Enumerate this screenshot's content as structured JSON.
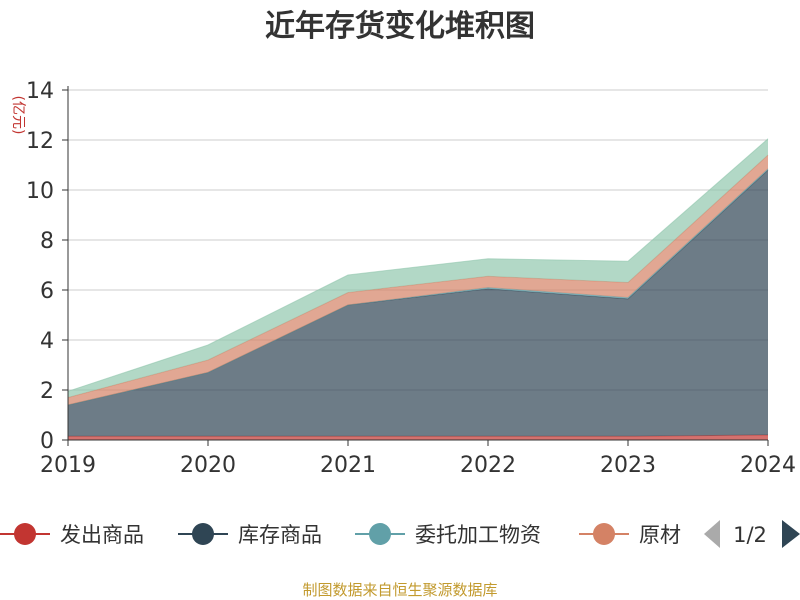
{
  "chart_data": {
    "type": "area",
    "stacked": true,
    "title": "近年存货变化堆积图",
    "unit_label": "(亿元)",
    "categories": [
      "2019",
      "2020",
      "2021",
      "2022",
      "2023",
      "2024"
    ],
    "ylim": [
      0,
      14
    ],
    "yticks": [
      0,
      2,
      4,
      6,
      8,
      10,
      12,
      14
    ],
    "grid": true,
    "series": [
      {
        "name": "发出商品",
        "color": "#c23531",
        "values": [
          0.15,
          0.15,
          0.15,
          0.15,
          0.15,
          0.2
        ]
      },
      {
        "name": "库存商品",
        "color": "#2f4554",
        "values": [
          1.25,
          2.55,
          5.25,
          5.9,
          5.5,
          10.6
        ]
      },
      {
        "name": "委托加工物资",
        "color": "#61a0a8",
        "values": [
          0.0,
          0.0,
          0.0,
          0.05,
          0.05,
          0.05
        ]
      },
      {
        "name": "原材料",
        "color": "#d48265",
        "values": [
          0.3,
          0.5,
          0.5,
          0.45,
          0.6,
          0.55
        ]
      },
      {
        "color": "#91c7ae",
        "values": [
          0.25,
          0.6,
          0.7,
          0.7,
          0.85,
          0.65
        ]
      }
    ],
    "legend": {
      "placement": "bottom",
      "visible_items": [
        "发出商品",
        "库存商品",
        "委托加工物资",
        "原材"
      ],
      "page": "1/2"
    },
    "source_note": "制图数据来自恒生聚源数据库"
  }
}
